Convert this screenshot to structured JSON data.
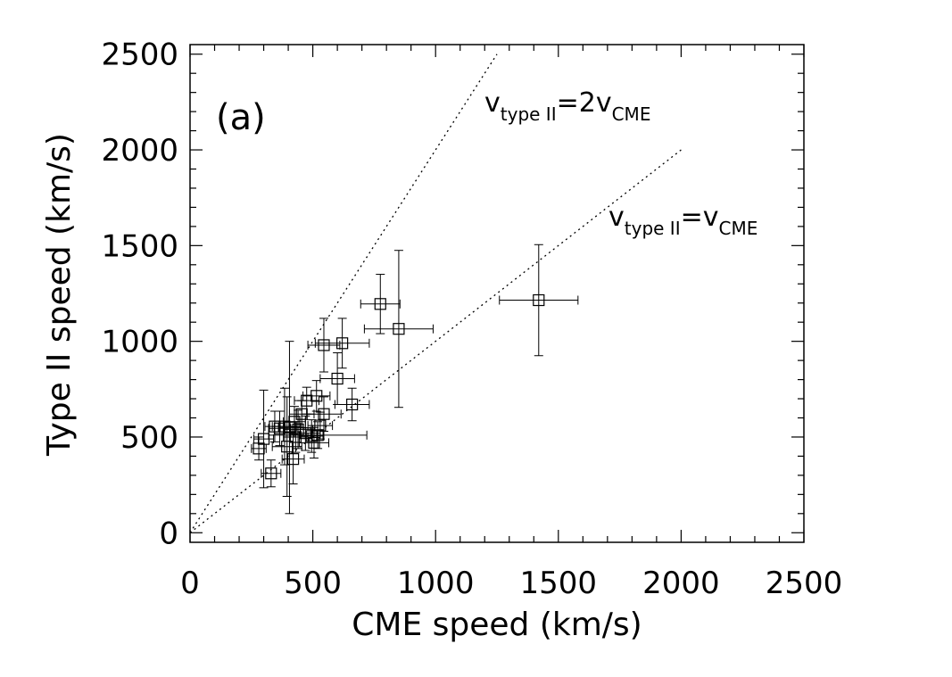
{
  "chart_data": {
    "type": "scatter",
    "panel_label": "(a)",
    "xlabel": "CME speed (km/s)",
    "ylabel": "Type II speed (km/s)",
    "xlim": [
      0,
      2500
    ],
    "ylim": [
      -50,
      2550
    ],
    "xticks": [
      0,
      500,
      1000,
      1500,
      2000,
      2500
    ],
    "yticks": [
      0,
      500,
      1000,
      1500,
      2000,
      2500
    ],
    "xtick_labels": [
      "0",
      "500",
      "1000",
      "1500",
      "2000",
      "2500"
    ],
    "ytick_labels": [
      "0",
      "500",
      "1000",
      "1500",
      "2000",
      "2500"
    ],
    "reference_lines": [
      {
        "slope": 2,
        "x_range": [
          0,
          1250
        ],
        "label_main": "v",
        "label_sub1": "type II",
        "label_eq": "=2v",
        "label_sub2": "CME",
        "style": "dotted"
      },
      {
        "slope": 1,
        "x_range": [
          0,
          2000
        ],
        "label_main": "v",
        "label_sub1": "type II",
        "label_eq": "=v",
        "label_sub2": "CME",
        "style": "dotted"
      }
    ],
    "points": [
      {
        "x": 1420,
        "y": 1215,
        "xerr": 160,
        "yerr": 290
      },
      {
        "x": 775,
        "y": 1195,
        "xerr": 80,
        "yerr": 155
      },
      {
        "x": 850,
        "y": 1065,
        "xerr": 140,
        "yerr": 410
      },
      {
        "x": 545,
        "y": 980,
        "xerr": 65,
        "yerr": 140
      },
      {
        "x": 620,
        "y": 990,
        "xerr": 110,
        "yerr": 130
      },
      {
        "x": 600,
        "y": 805,
        "xerr": 70,
        "yerr": 135
      },
      {
        "x": 660,
        "y": 670,
        "xerr": 70,
        "yerr": 85
      },
      {
        "x": 545,
        "y": 620,
        "xerr": 70,
        "yerr": 90
      },
      {
        "x": 515,
        "y": 715,
        "xerr": 55,
        "yerr": 80
      },
      {
        "x": 475,
        "y": 690,
        "xerr": 50,
        "yerr": 70
      },
      {
        "x": 455,
        "y": 620,
        "xerr": 50,
        "yerr": 70
      },
      {
        "x": 425,
        "y": 580,
        "xerr": 45,
        "yerr": 80
      },
      {
        "x": 405,
        "y": 550,
        "xerr": 45,
        "yerr": 450
      },
      {
        "x": 385,
        "y": 555,
        "xerr": 50,
        "yerr": 200
      },
      {
        "x": 365,
        "y": 545,
        "xerr": 45,
        "yerr": 90
      },
      {
        "x": 345,
        "y": 555,
        "xerr": 40,
        "yerr": 80
      },
      {
        "x": 300,
        "y": 490,
        "xerr": 40,
        "yerr": 255
      },
      {
        "x": 280,
        "y": 440,
        "xerr": 30,
        "yerr": 60
      },
      {
        "x": 330,
        "y": 310,
        "xerr": 40,
        "yerr": 70
      },
      {
        "x": 395,
        "y": 450,
        "xerr": 60,
        "yerr": 260
      },
      {
        "x": 420,
        "y": 385,
        "xerr": 45,
        "yerr": 130
      },
      {
        "x": 440,
        "y": 540,
        "xerr": 60,
        "yerr": 100
      },
      {
        "x": 470,
        "y": 520,
        "xerr": 60,
        "yerr": 90
      },
      {
        "x": 495,
        "y": 505,
        "xerr": 50,
        "yerr": 85
      },
      {
        "x": 505,
        "y": 470,
        "xerr": 60,
        "yerr": 80
      },
      {
        "x": 520,
        "y": 510,
        "xerr": 200,
        "yerr": 70
      },
      {
        "x": 530,
        "y": 560,
        "xerr": 50,
        "yerr": 70
      },
      {
        "x": 430,
        "y": 500,
        "xerr": 50,
        "yerr": 80
      }
    ]
  }
}
